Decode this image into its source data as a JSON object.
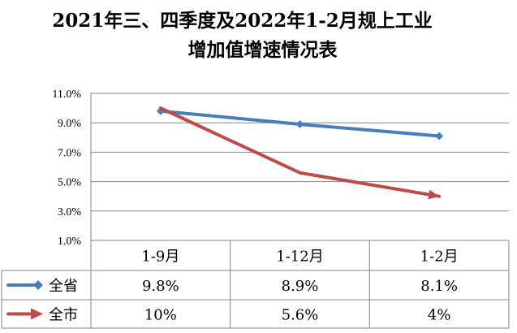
{
  "chart_data": {
    "type": "line",
    "title_line1": "2021年三、四季度及2022年1-2月规上工业",
    "title_line2": "增加值增速情况表",
    "categories": [
      "1-9月",
      "1-12月",
      "1-2月"
    ],
    "y_ticks": [
      "11.0%",
      "9.0%",
      "7.0%",
      "5.0%",
      "3.0%",
      "1.0%"
    ],
    "ylim": [
      1.0,
      11.0
    ],
    "series": [
      {
        "name": "全省",
        "values": [
          9.8,
          8.9,
          8.1
        ],
        "labels": [
          "9.8%",
          "8.9%",
          "8.1%"
        ],
        "color": "#4A7EBB",
        "marker": "diamond"
      },
      {
        "name": "全市",
        "values": [
          10.0,
          5.6,
          4.0
        ],
        "labels": [
          "10%",
          "5.6%",
          "4%"
        ],
        "color": "#BE4B48",
        "marker": "arrow"
      }
    ],
    "grid": true,
    "legend": "data-table"
  }
}
